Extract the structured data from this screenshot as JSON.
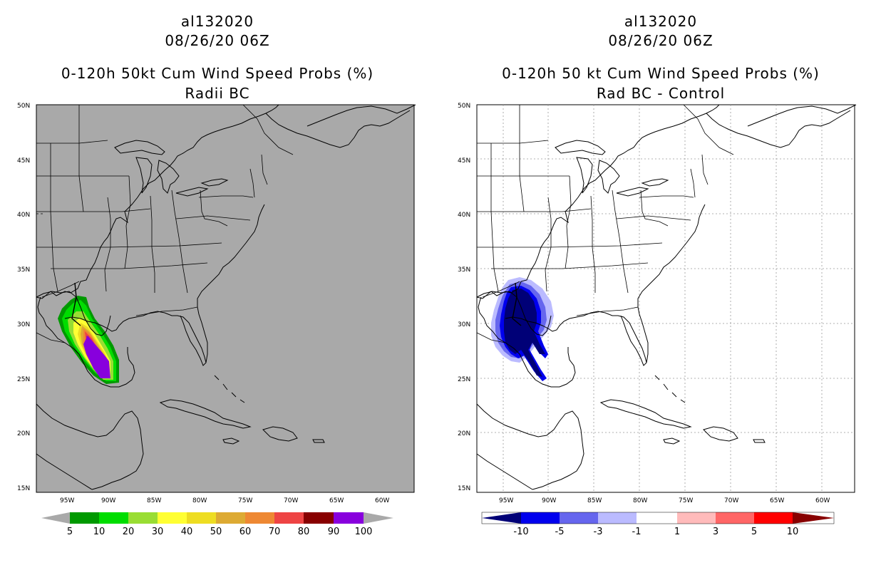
{
  "left_panel": {
    "storm_id": "al132020",
    "datetime": "08/26/20 06Z",
    "title": "0-120h 50kt Cum Wind Speed Probs (%)",
    "subtitle": "Radii BC",
    "background_color": "#a9a9a9",
    "colorbar": {
      "labels": [
        "5",
        "10",
        "20",
        "30",
        "40",
        "50",
        "60",
        "70",
        "80",
        "90",
        "100"
      ],
      "colors": [
        "#009900",
        "#00dd00",
        "#99dd33",
        "#ffff33",
        "#eedd22",
        "#ddaa33",
        "#ee8833",
        "#ee4444",
        "#880000",
        "#8800dd"
      ]
    }
  },
  "right_panel": {
    "storm_id": "al132020",
    "datetime": "08/26/20 06Z",
    "title": "0-120h 50 kt Cum Wind Speed Probs (%)",
    "subtitle": "Rad BC - Control",
    "background_color": "#ffffff",
    "colorbar": {
      "labels": [
        "-10",
        "-5",
        "-3",
        "-1",
        "1",
        "3",
        "5",
        "10"
      ],
      "colors": [
        "#000077",
        "#0000ee",
        "#6666ee",
        "#bbbbff",
        "#ffffff",
        "#ffbbbb",
        "#ff6666",
        "#ff0000",
        "#880000"
      ]
    }
  },
  "map": {
    "lat_labels": [
      "50N",
      "45N",
      "40N",
      "35N",
      "30N",
      "25N",
      "20N",
      "15N"
    ],
    "lon_labels": [
      "95W",
      "90W",
      "85W",
      "80W",
      "75W",
      "70W",
      "65W",
      "60W"
    ]
  }
}
